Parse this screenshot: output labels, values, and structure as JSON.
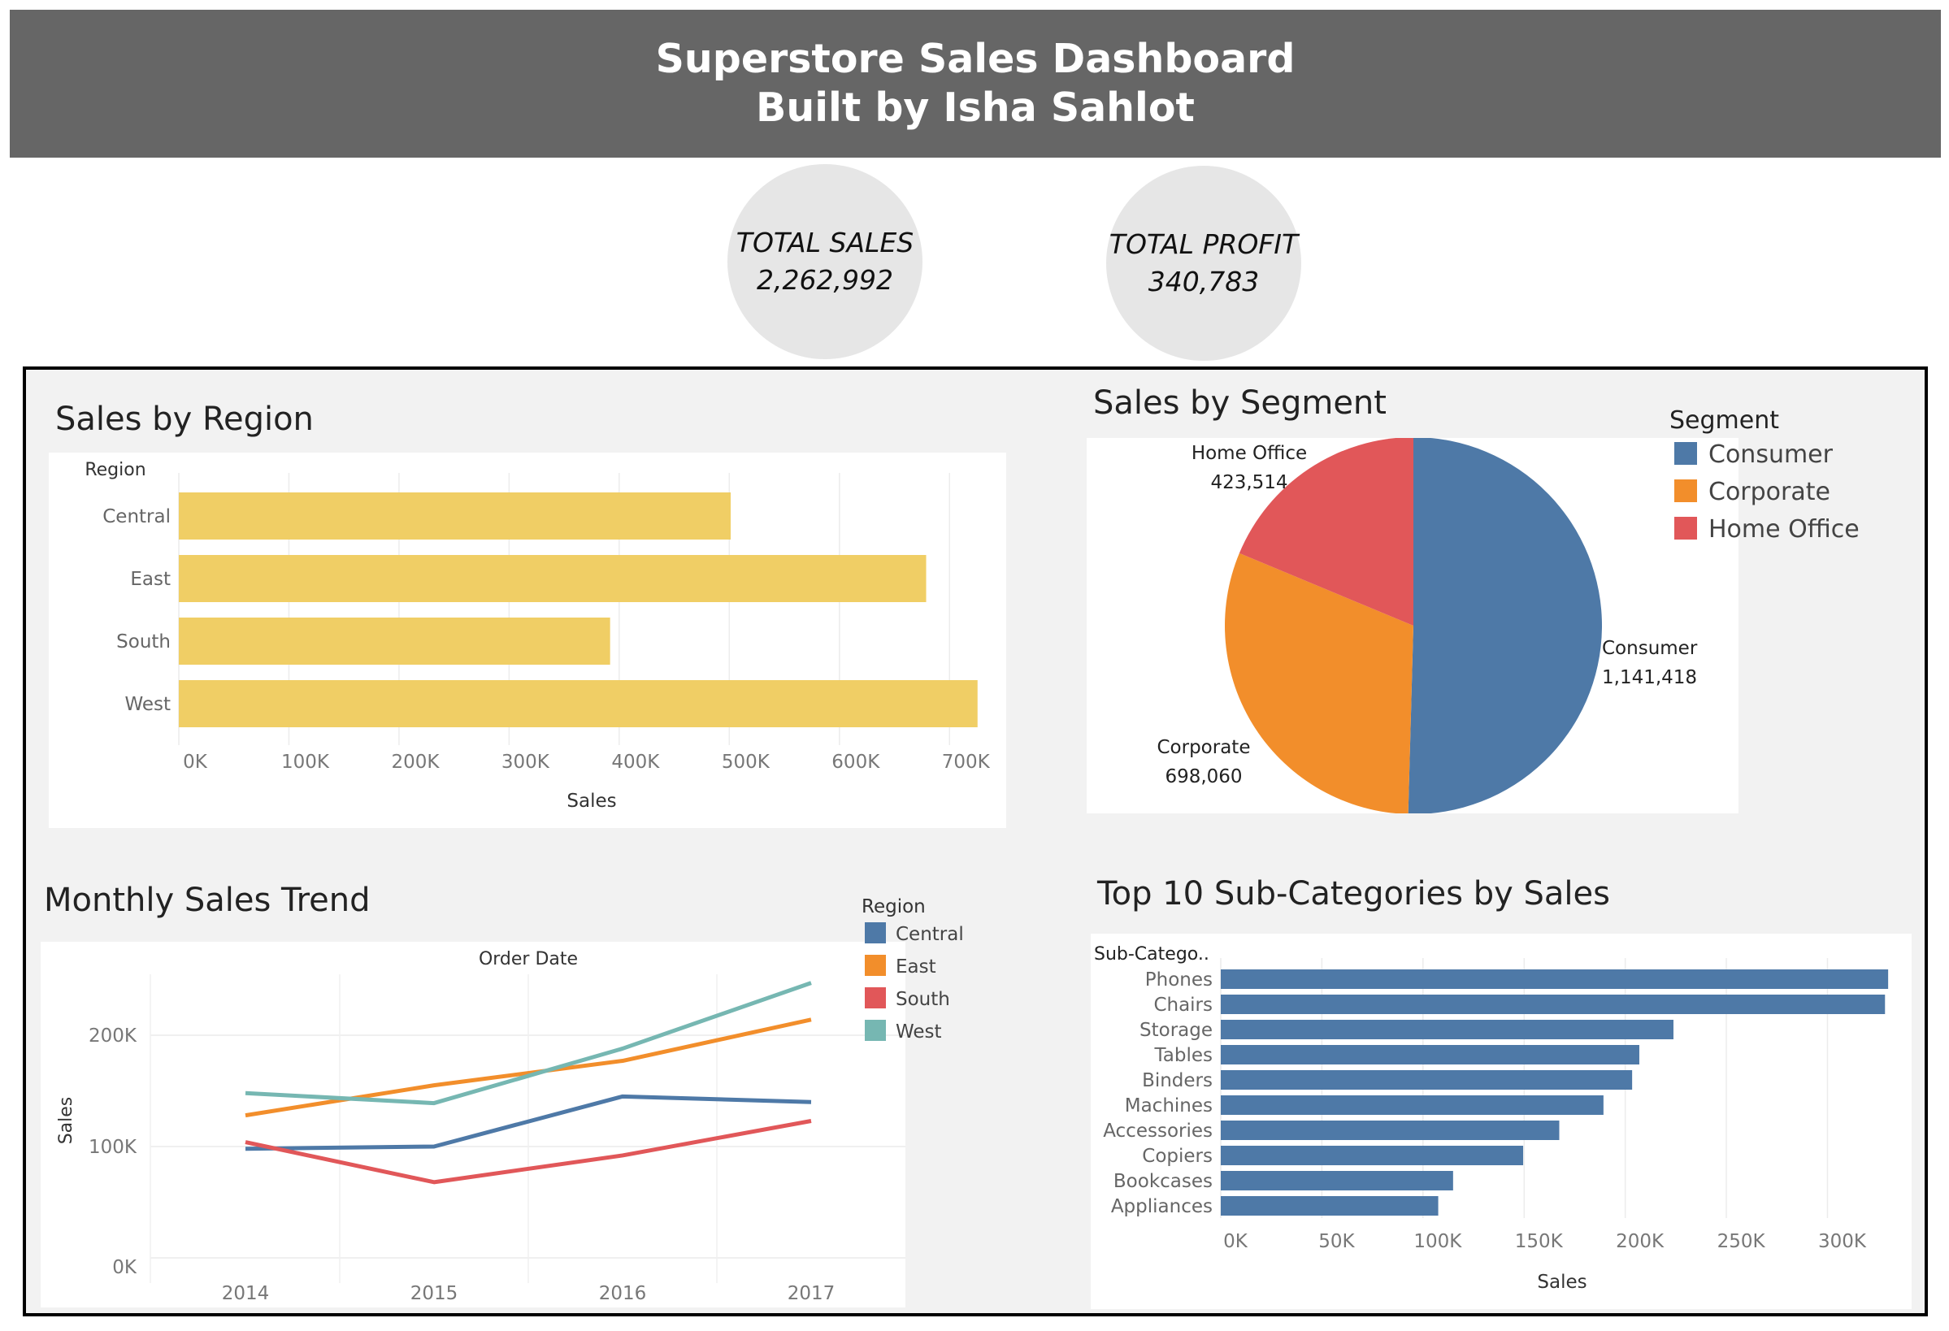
{
  "header": {
    "title_line1": "Superstore Sales Dashboard",
    "title_line2": "Built by Isha Sahlot"
  },
  "kpis": {
    "total_sales_label": "TOTAL SALES",
    "total_sales_value": "2,262,992",
    "total_profit_label": "TOTAL PROFIT",
    "total_profit_value": "340,783"
  },
  "panels": {
    "region_title": "Sales by Region",
    "segment_title": "Sales by Segment",
    "trend_title": "Monthly Sales Trend",
    "subcat_title": "Top 10 Sub-Categories by Sales"
  },
  "colors": {
    "region_bar": "#f0ce65",
    "consumer": "#4e79a7",
    "corporate": "#f28e2b",
    "home_office": "#e15759",
    "central": "#4e79a7",
    "east": "#f28e2b",
    "south": "#e15759",
    "west": "#76b7b2",
    "subcat_bar": "#4e79a7"
  },
  "chart_data": [
    {
      "type": "bar",
      "orientation": "horizontal",
      "title": "Sales by Region",
      "category_label": "Region",
      "xlabel": "Sales",
      "categories": [
        "Central",
        "East",
        "South",
        "West"
      ],
      "values": [
        501240,
        678781,
        391722,
        725458
      ],
      "x_ticks": [
        "0K",
        "100K",
        "200K",
        "300K",
        "400K",
        "500K",
        "600K",
        "700K"
      ],
      "xlim": [
        0,
        750000
      ],
      "grid": true
    },
    {
      "type": "pie",
      "title": "Sales by Segment",
      "legend_title": "Segment",
      "legend_position": "top-right",
      "labels": [
        "Consumer",
        "Corporate",
        "Home Office"
      ],
      "values": [
        1141418,
        698060,
        423514
      ],
      "value_labels": [
        "1,141,418",
        "698,060",
        "423,514"
      ]
    },
    {
      "type": "line",
      "title": "Monthly Sales Trend",
      "xlabel": "Order Date",
      "ylabel": "Sales",
      "legend_title": "Region",
      "legend_position": "top-right",
      "x": [
        "2014",
        "2015",
        "2016",
        "2017"
      ],
      "y_ticks": [
        "0K",
        "100K",
        "200K"
      ],
      "ylim": [
        0,
        260000
      ],
      "series": [
        {
          "name": "Central",
          "values": [
            98000,
            100000,
            145000,
            140000
          ]
        },
        {
          "name": "East",
          "values": [
            128000,
            155000,
            177000,
            214000
          ]
        },
        {
          "name": "South",
          "values": [
            104000,
            68000,
            92000,
            123000
          ]
        },
        {
          "name": "West",
          "values": [
            148000,
            139000,
            188000,
            247000
          ]
        }
      ],
      "grid": true
    },
    {
      "type": "bar",
      "orientation": "horizontal",
      "title": "Top 10 Sub-Categories by Sales",
      "category_label": "Sub-Catego..",
      "xlabel": "Sales",
      "categories": [
        "Phones",
        "Chairs",
        "Storage",
        "Tables",
        "Binders",
        "Machines",
        "Accessories",
        "Copiers",
        "Bookcases",
        "Appliances"
      ],
      "values": [
        330007,
        328449,
        223844,
        206966,
        203413,
        189239,
        167380,
        149528,
        114880,
        107532
      ],
      "x_ticks": [
        "0K",
        "50K",
        "100K",
        "150K",
        "200K",
        "250K",
        "300K"
      ],
      "xlim": [
        0,
        340000
      ],
      "grid": true
    }
  ]
}
